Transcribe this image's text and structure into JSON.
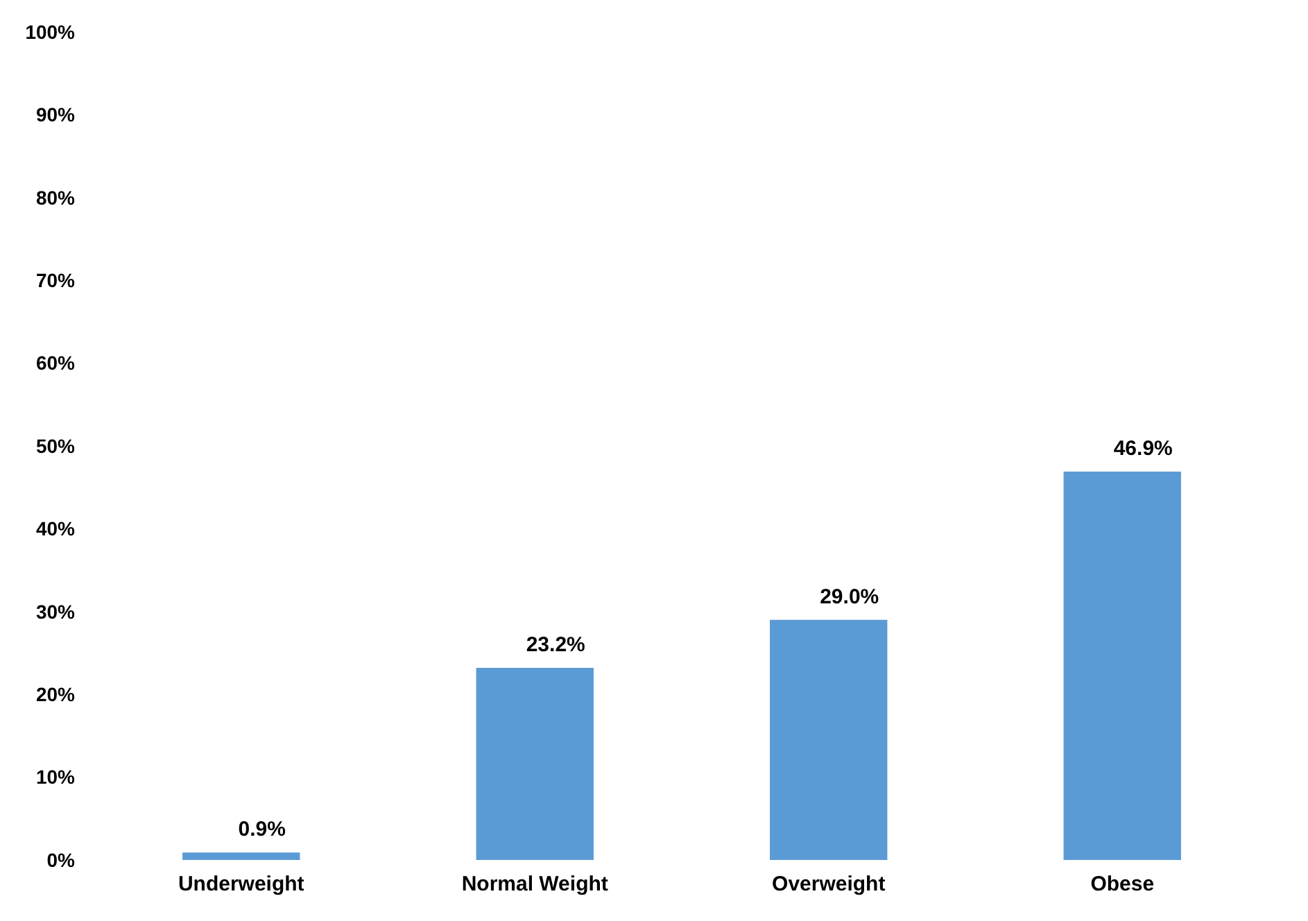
{
  "chart_data": {
    "type": "bar",
    "categories": [
      "Underweight",
      "Normal Weight",
      "Overweight",
      "Obese"
    ],
    "values": [
      0.9,
      23.2,
      29.0,
      46.9
    ],
    "color": "#5b9bd5",
    "value_labels": [
      "0.9%",
      "23.2%",
      "29.0%",
      "46.9%"
    ],
    "ylim": [
      0,
      100
    ],
    "yticks": [
      {
        "value": 0,
        "label": "0%"
      },
      {
        "value": 10,
        "label": "10%"
      },
      {
        "value": 20,
        "label": "20%"
      },
      {
        "value": 30,
        "label": "30%"
      },
      {
        "value": 40,
        "label": "40%"
      },
      {
        "value": 50,
        "label": "50%"
      },
      {
        "value": 60,
        "label": "60%"
      },
      {
        "value": 70,
        "label": "70%"
      },
      {
        "value": 80,
        "label": "80%"
      },
      {
        "value": 90,
        "label": "90%"
      },
      {
        "value": 100,
        "label": "100%"
      }
    ],
    "grid": false
  }
}
